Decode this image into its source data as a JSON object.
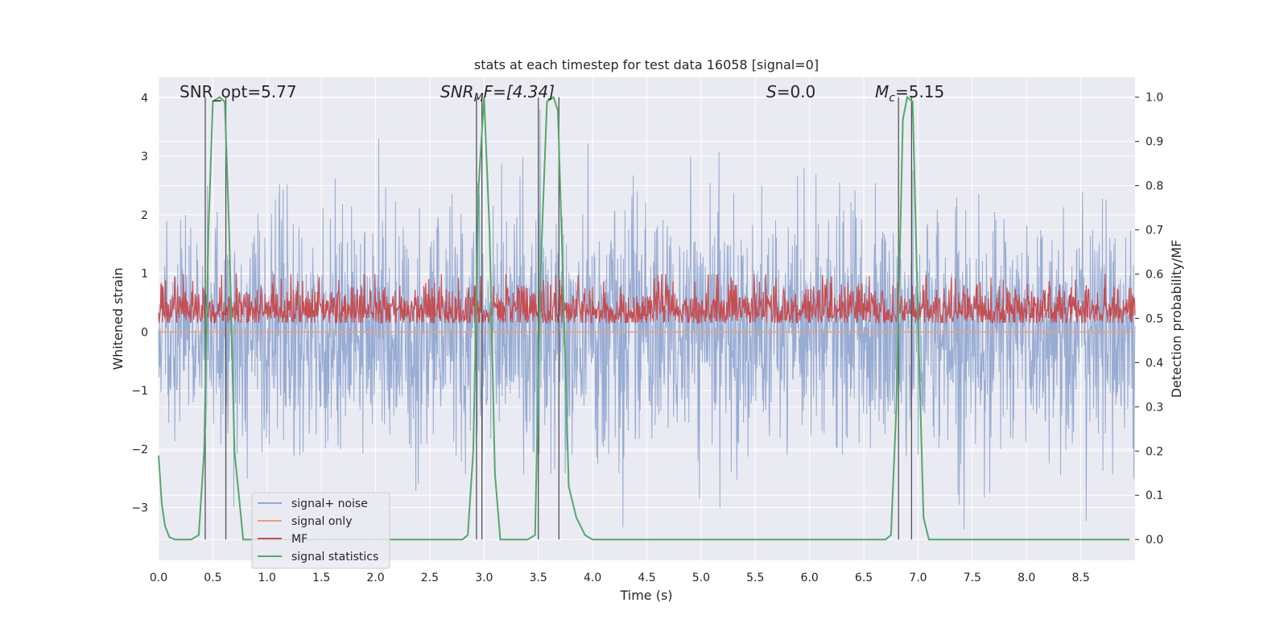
{
  "chart_data": {
    "type": "line",
    "title": "stats at each timestep for test data 16058 [signal=0]",
    "xlabel": "Time (s)",
    "ylabel_left": "Whitened strain",
    "ylabel_right": "Detection probability/MF",
    "xlim": [
      0,
      9.0
    ],
    "ylim_left": [
      -3.9,
      4.35
    ],
    "ylim_right": [
      -0.047,
      1.045
    ],
    "x_ticks": [
      "0.0",
      "0.5",
      "1.0",
      "1.5",
      "2.0",
      "2.5",
      "3.0",
      "3.5",
      "4.0",
      "4.5",
      "5.0",
      "5.5",
      "6.0",
      "6.5",
      "7.0",
      "7.5",
      "8.0",
      "8.5"
    ],
    "y_left_ticks": [
      "4",
      "3",
      "2",
      "1",
      "0",
      "−1",
      "−2",
      "−3"
    ],
    "y_right_ticks": [
      "1.0",
      "0.9",
      "0.8",
      "0.7",
      "0.6",
      "0.5",
      "0.4",
      "0.3",
      "0.2",
      "0.1",
      "0.0"
    ],
    "grid": true,
    "legend_position": "lower-left",
    "annotations": {
      "snr_opt": "SNR_opt=5.77",
      "snr_mf_main": "SNR",
      "snr_mf_sub": "M",
      "snr_mf_tail": "F=[4.34]",
      "s_main": "S",
      "s_tail": "=0.0",
      "mc_main": "M",
      "mc_sub": "c",
      "mc_tail": "=5.15"
    },
    "series": [
      {
        "name": "signal+ noise",
        "color": "#92a8d1",
        "axis": "left",
        "description_stats": {
          "mean": 0.0,
          "std": 1.0
        }
      },
      {
        "name": "signal only",
        "color": "#e8a07a",
        "axis": "left",
        "values": [
          [
            0,
            0
          ],
          [
            9,
            0
          ]
        ]
      },
      {
        "name": "MF",
        "color": "#c44e52",
        "axis": "left"
      },
      {
        "name": "signal statistics",
        "color": "#55a868",
        "axis": "right",
        "x": [
          0.0,
          0.03,
          0.06,
          0.1,
          0.15,
          0.2,
          0.3,
          0.37,
          0.42,
          0.46,
          0.5,
          0.56,
          0.61,
          0.65,
          0.7,
          0.78,
          0.9,
          1.0,
          2.0,
          2.8,
          2.85,
          2.9,
          2.95,
          3.0,
          3.05,
          3.1,
          3.15,
          3.25,
          3.4,
          3.47,
          3.52,
          3.58,
          3.64,
          3.68,
          3.72,
          3.78,
          3.85,
          3.93,
          4.0,
          5.0,
          6.0,
          6.7,
          6.75,
          6.8,
          6.86,
          6.9,
          6.95,
          7.0,
          7.05,
          7.1,
          8.0,
          8.95
        ],
        "y": [
          0.19,
          0.08,
          0.03,
          0.005,
          0.0,
          0.0,
          0.0,
          0.01,
          0.2,
          0.7,
          0.99,
          1.0,
          0.99,
          0.7,
          0.2,
          0.0,
          0.0,
          0.0,
          0.0,
          0.0,
          0.01,
          0.2,
          0.8,
          1.0,
          0.7,
          0.15,
          0.0,
          0.0,
          0.0,
          0.01,
          0.6,
          0.99,
          1.0,
          0.97,
          0.65,
          0.12,
          0.05,
          0.01,
          0.0,
          0.0,
          0.0,
          0.0,
          0.01,
          0.3,
          0.95,
          1.0,
          0.99,
          0.5,
          0.05,
          0.0,
          0.0,
          0.0
        ]
      },
      {
        "name": "bands",
        "color": "#555555",
        "axis": "right",
        "x_lines": [
          0.43,
          0.62,
          2.93,
          2.98,
          3.5,
          3.69,
          6.82,
          6.94
        ]
      }
    ]
  },
  "legend": [
    {
      "label": "signal+ noise",
      "color": "#92a8d1"
    },
    {
      "label": "signal only",
      "color": "#e8a07a"
    },
    {
      "label": "MF",
      "color": "#c44e52"
    },
    {
      "label": "signal statistics",
      "color": "#55a868"
    }
  ]
}
